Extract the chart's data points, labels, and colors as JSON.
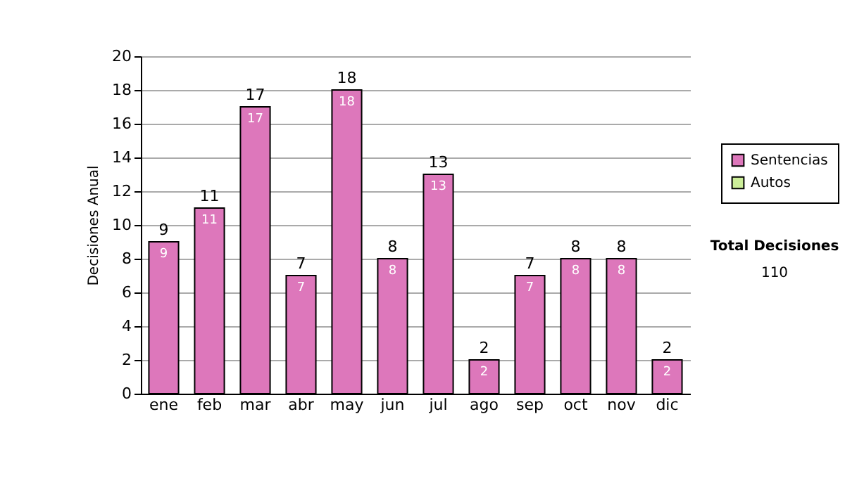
{
  "chart_data": {
    "type": "bar",
    "ylabel": "Decisiones Anual",
    "categories": [
      "ene",
      "feb",
      "mar",
      "abr",
      "may",
      "jun",
      "jul",
      "ago",
      "sep",
      "oct",
      "nov",
      "dic"
    ],
    "series": [
      {
        "name": "Sentencias",
        "color": "#dd77bb",
        "values": [
          9,
          11,
          17,
          7,
          18,
          8,
          13,
          2,
          7,
          8,
          8,
          2
        ]
      },
      {
        "name": "Autos",
        "color": "#ccee99",
        "values": [
          null,
          null,
          null,
          null,
          null,
          null,
          null,
          null,
          null,
          null,
          null,
          null
        ]
      }
    ],
    "stacked": true,
    "ylim": [
      0,
      20
    ],
    "yticks": [
      0,
      2,
      4,
      6,
      8,
      10,
      12,
      14,
      16,
      18,
      20
    ],
    "grid": "y",
    "legend": "right",
    "data_labels": true,
    "totals": [
      "9",
      "11",
      "17",
      "7",
      "18",
      "8",
      "13",
      "2",
      "7",
      "8",
      "8",
      "2"
    ],
    "annotations": [
      "Total Decisiones",
      "110"
    ]
  }
}
